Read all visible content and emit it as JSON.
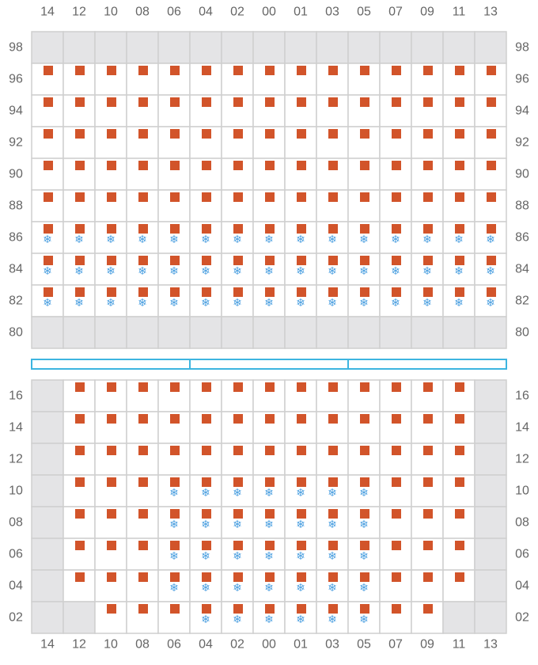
{
  "colors": {
    "grid_line": "#cfcfcf",
    "cell_empty": "#ffffff",
    "cell_blocked": "#e4e4e6",
    "slot_marker": "#d2542a",
    "reefer_marker": "#4a9fe0",
    "lid_outline": "#3db5e0",
    "label_text": "#666666"
  },
  "icons": {
    "slot": "orange-square-icon",
    "reefer": "snowflake-icon",
    "reefer_glyph": "❄"
  },
  "columns": [
    "14",
    "12",
    "10",
    "08",
    "06",
    "04",
    "02",
    "00",
    "01",
    "03",
    "05",
    "07",
    "09",
    "11",
    "13"
  ],
  "deck": {
    "tiers": [
      "98",
      "96",
      "94",
      "92",
      "90",
      "88",
      "86",
      "84",
      "82",
      "80"
    ],
    "blocked_tiers": [
      "98",
      "80"
    ],
    "blocked_cells": [],
    "slot_tiers": [
      "96",
      "94",
      "92",
      "90",
      "88",
      "86",
      "84",
      "82"
    ],
    "slot_columns": [
      "14",
      "12",
      "10",
      "08",
      "06",
      "04",
      "02",
      "00",
      "01",
      "03",
      "05",
      "07",
      "09",
      "11",
      "13"
    ],
    "reefer_tiers": [
      "86",
      "84",
      "82"
    ],
    "reefer_columns": [
      "14",
      "12",
      "10",
      "08",
      "06",
      "04",
      "02",
      "00",
      "01",
      "03",
      "05",
      "07",
      "09",
      "11",
      "13"
    ]
  },
  "hatch_cover_panels": 3,
  "hold": {
    "tiers": [
      "16",
      "14",
      "12",
      "10",
      "08",
      "06",
      "04",
      "02"
    ],
    "blocked_columns": [
      "14",
      "13"
    ],
    "blocked_cells": [
      {
        "tier": "02",
        "column": "12"
      },
      {
        "tier": "02",
        "column": "11"
      }
    ],
    "slots": {
      "16": [
        "12",
        "10",
        "08",
        "06",
        "04",
        "02",
        "00",
        "01",
        "03",
        "05",
        "07",
        "09",
        "11"
      ],
      "14": [
        "12",
        "10",
        "08",
        "06",
        "04",
        "02",
        "00",
        "01",
        "03",
        "05",
        "07",
        "09",
        "11"
      ],
      "12": [
        "12",
        "10",
        "08",
        "06",
        "04",
        "02",
        "00",
        "01",
        "03",
        "05",
        "07",
        "09",
        "11"
      ],
      "10": [
        "12",
        "10",
        "08",
        "06",
        "04",
        "02",
        "00",
        "01",
        "03",
        "05",
        "07",
        "09",
        "11"
      ],
      "08": [
        "12",
        "10",
        "08",
        "06",
        "04",
        "02",
        "00",
        "01",
        "03",
        "05",
        "07",
        "09",
        "11"
      ],
      "06": [
        "12",
        "10",
        "08",
        "06",
        "04",
        "02",
        "00",
        "01",
        "03",
        "05",
        "07",
        "09",
        "11"
      ],
      "04": [
        "12",
        "10",
        "08",
        "06",
        "04",
        "02",
        "00",
        "01",
        "03",
        "05",
        "07",
        "09",
        "11"
      ],
      "02": [
        "10",
        "08",
        "06",
        "04",
        "02",
        "00",
        "01",
        "03",
        "05",
        "07",
        "09"
      ]
    },
    "reefers": {
      "10": [
        "06",
        "04",
        "02",
        "00",
        "01",
        "03",
        "05"
      ],
      "08": [
        "06",
        "04",
        "02",
        "00",
        "01",
        "03",
        "05"
      ],
      "06": [
        "06",
        "04",
        "02",
        "00",
        "01",
        "03",
        "05"
      ],
      "04": [
        "06",
        "04",
        "02",
        "00",
        "01",
        "03",
        "05"
      ],
      "02": [
        "04",
        "02",
        "00",
        "01",
        "03",
        "05"
      ]
    }
  }
}
